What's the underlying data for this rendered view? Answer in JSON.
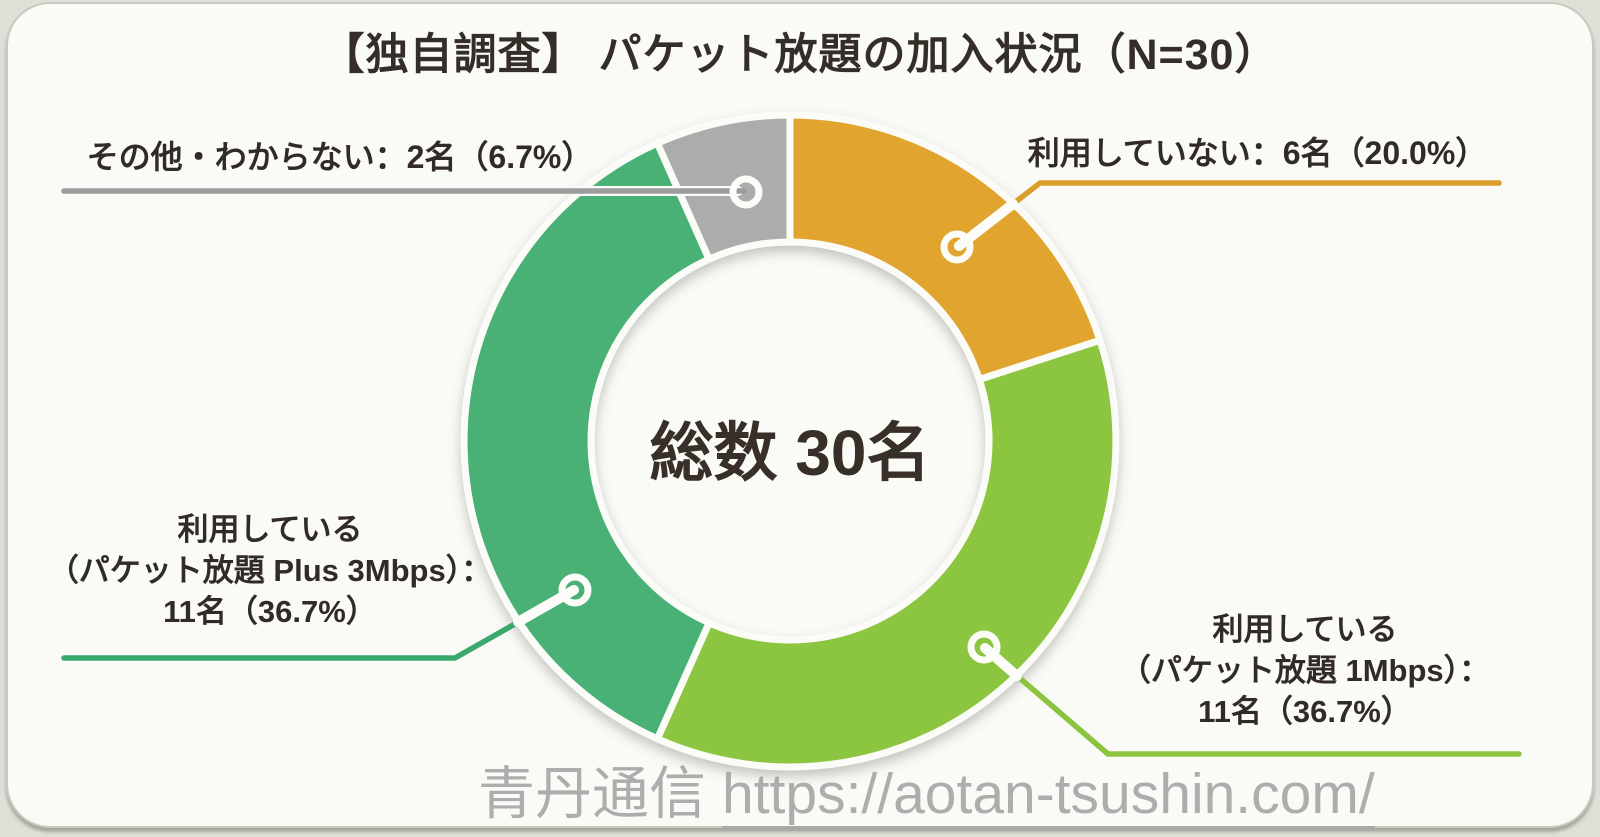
{
  "page": {
    "background_color": "#DDE0D6",
    "card_color": "#FAFAF7",
    "text_color": "#322B25",
    "watermark_color": "#A7A7A7"
  },
  "chart_data": {
    "type": "pie",
    "variant": "donut",
    "title": "【独自調査】 パケット放題の加入状況（N=30）",
    "total": 30,
    "total_label": "総数 30名",
    "unit": "名",
    "start_angle_deg": 0,
    "direction": "clockwise",
    "legend_position": "callout-labels",
    "segments": [
      {
        "label": "利用していない",
        "count": 6,
        "percent": 20.0,
        "color": "#E1A42E",
        "leader_color": "#DA9F2B",
        "annotation": "利用していない：6名（20.0%）"
      },
      {
        "label": "利用している（パケット放題 1Mbps）",
        "count": 11,
        "percent": 36.7,
        "color": "#8CC63F",
        "leader_color": "#8BC43E",
        "annotation": "利用している（パケット放題 1Mbps）：11名（36.7%）"
      },
      {
        "label": "利用している（パケット放題 Plus 3Mbps）",
        "count": 11,
        "percent": 36.7,
        "color": "#4AB176",
        "leader_color": "#3BA96D",
        "annotation": "利用している（パケット放題 Plus 3Mbps）：11名（36.7%）"
      },
      {
        "label": "その他・わからない",
        "count": 2,
        "percent": 6.7,
        "color": "#ACACAC",
        "leader_color": "#9C9C9C",
        "annotation": "その他・わからない：2名（6.7%）"
      }
    ]
  },
  "annotations": {
    "other": {
      "text": "その他・わからない：2名（6.7%）"
    },
    "not_using": {
      "text": "利用していない：6名（20.0%）"
    },
    "using_plus3mbps": {
      "line1": "利用している",
      "line2": "（パケット放題 Plus 3Mbps）：",
      "line3": "11名（36.7%）"
    },
    "using_1mbps": {
      "line1": "利用している",
      "line2": "（パケット放題 1Mbps）：",
      "line3": "11名（36.7%）"
    }
  },
  "watermark": {
    "site_name": "青丹通信",
    "url": "https://aotan-tsushin.com/"
  }
}
